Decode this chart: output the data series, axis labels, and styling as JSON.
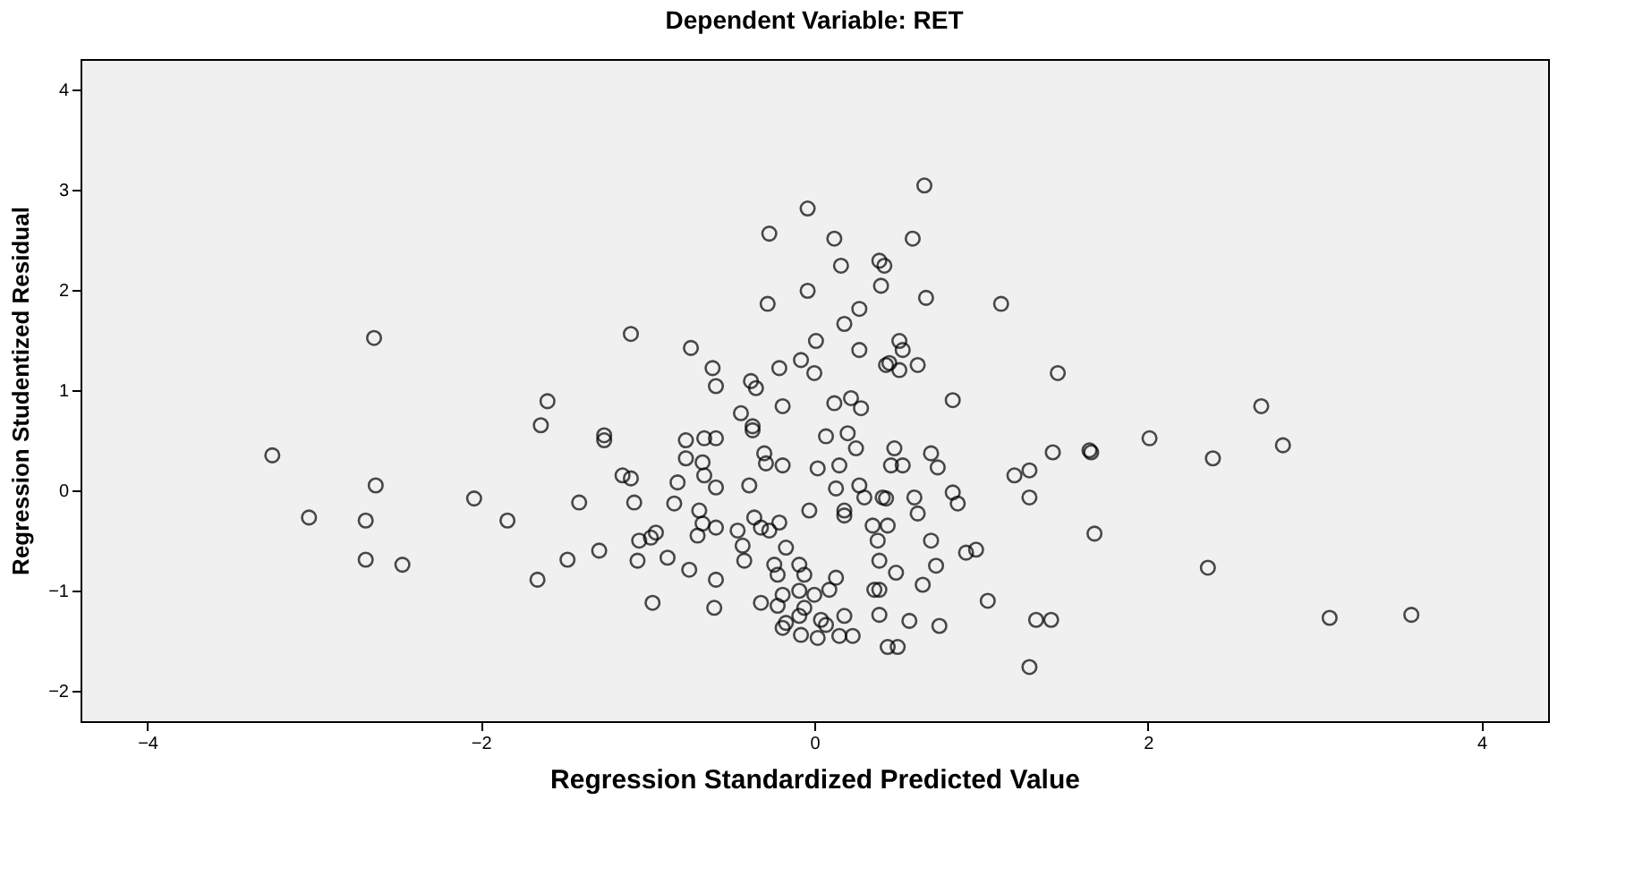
{
  "chart_data": {
    "type": "scatter",
    "title": "Dependent Variable: RET",
    "xlabel": "Regression Standardized Predicted Value",
    "ylabel": "Regression Studentized Residual",
    "xlim": [
      -4.4,
      4.4
    ],
    "ylim": [
      -2.3,
      4.3
    ],
    "xticks": [
      -4,
      -2,
      0,
      2,
      4
    ],
    "yticks": [
      -2,
      -1,
      0,
      1,
      2,
      3,
      4
    ],
    "grid": false,
    "marker": "circle",
    "color": "#000000",
    "x": [
      -3.25,
      -3.03,
      -2.69,
      -2.69,
      -2.63,
      -2.64,
      -2.47,
      -2.04,
      -1.84,
      -1.66,
      -1.64,
      -1.6,
      -1.41,
      -1.48,
      -1.26,
      -1.26,
      -1.15,
      -1.1,
      -1.08,
      -1.1,
      -0.98,
      -0.97,
      -1.29,
      -0.74,
      -0.88,
      -0.04,
      -0.27,
      0.12,
      0.16,
      0.39,
      0.42,
      0.4,
      -0.04,
      -0.28,
      0.27,
      0.18,
      0.01,
      0.27,
      -0.61,
      -0.59,
      -0.38,
      -0.35,
      -0.21,
      -0.08,
      0.0,
      0.12,
      0.22,
      0.28,
      -0.19,
      -0.44,
      -0.37,
      0.43,
      0.66,
      0.59,
      0.67,
      1.12,
      0.51,
      0.53,
      0.45,
      0.51,
      0.62,
      1.46,
      0.83,
      2.68,
      2.01,
      1.66,
      2.39,
      2.81,
      1.68,
      2.36,
      3.09,
      3.58,
      1.43,
      1.65,
      1.2,
      1.29,
      1.29,
      0.91,
      0.97,
      1.04,
      1.33,
      1.42,
      1.29,
      0.7,
      0.74,
      0.48,
      0.53,
      0.46,
      0.83,
      0.86,
      0.6,
      0.62,
      0.43,
      0.44,
      0.7,
      0.73,
      0.49,
      0.65,
      0.39,
      0.39,
      0.39,
      0.57,
      0.75,
      0.44,
      0.5,
      -0.77,
      -0.66,
      -0.59,
      -0.37,
      -0.3,
      -0.29,
      -0.19,
      -0.77,
      -0.67,
      -0.66,
      -0.59,
      -0.82,
      -0.39,
      -0.84,
      0.07,
      0.2,
      0.25,
      0.15,
      0.02,
      0.13,
      0.27,
      0.3,
      0.41,
      -0.03,
      0.18,
      0.18,
      -0.69,
      -0.67,
      -0.7,
      -0.95,
      -1.05,
      -0.59,
      -0.46,
      -0.36,
      -0.32,
      -0.21,
      -0.27,
      -0.17,
      -0.43,
      -0.42,
      -1.06,
      -0.75,
      -0.59,
      -0.6,
      -0.32,
      -0.24,
      -0.22,
      -0.09,
      -0.06,
      0.13,
      0.09,
      -0.19,
      -0.09,
      0.0,
      -0.22,
      -0.06,
      -0.09,
      -0.17,
      -0.19,
      0.04,
      0.18,
      0.07,
      0.15,
      -0.08,
      0.02,
      0.36,
      0.38,
      0.35,
      0.23
    ],
    "values": [
      0.35,
      -0.27,
      -0.3,
      -0.69,
      0.05,
      1.52,
      -0.74,
      -0.08,
      -0.3,
      -0.89,
      0.65,
      0.89,
      -0.12,
      -0.69,
      0.55,
      0.5,
      0.15,
      0.12,
      -0.12,
      1.56,
      -0.47,
      -1.12,
      -0.6,
      1.42,
      -0.67,
      2.81,
      2.56,
      2.51,
      2.24,
      2.29,
      2.24,
      2.04,
      1.99,
      1.86,
      1.81,
      1.66,
      1.49,
      1.4,
      1.22,
      1.04,
      1.09,
      1.02,
      1.22,
      1.3,
      1.17,
      0.87,
      0.92,
      0.82,
      0.84,
      0.77,
      0.64,
      1.25,
      3.04,
      2.51,
      1.92,
      1.86,
      1.49,
      1.4,
      1.27,
      1.2,
      1.25,
      1.17,
      0.9,
      0.84,
      0.52,
      0.38,
      0.32,
      0.45,
      -0.43,
      -0.77,
      -1.27,
      -1.24,
      0.38,
      0.4,
      0.15,
      0.2,
      -0.07,
      -0.62,
      -0.59,
      -1.1,
      -1.29,
      -1.29,
      -1.76,
      0.37,
      0.23,
      0.42,
      0.25,
      0.25,
      -0.02,
      -0.13,
      -0.07,
      -0.23,
      -0.08,
      -0.35,
      -0.5,
      -0.75,
      -0.82,
      -0.94,
      -0.7,
      -0.99,
      -1.24,
      -1.3,
      -1.35,
      -1.56,
      -1.56,
      0.5,
      0.52,
      0.52,
      0.6,
      0.37,
      0.27,
      0.25,
      0.32,
      0.28,
      0.15,
      0.03,
      0.08,
      0.05,
      -0.13,
      0.54,
      0.57,
      0.42,
      0.25,
      0.22,
      0.02,
      0.05,
      -0.07,
      -0.07,
      -0.2,
      -0.2,
      -0.25,
      -0.2,
      -0.33,
      -0.45,
      -0.42,
      -0.5,
      -0.37,
      -0.4,
      -0.27,
      -0.37,
      -0.32,
      -0.4,
      -0.57,
      -0.55,
      -0.7,
      -0.7,
      -0.79,
      -0.89,
      -1.17,
      -1.12,
      -0.74,
      -0.84,
      -0.74,
      -0.84,
      -0.87,
      -0.99,
      -1.04,
      -1.0,
      -1.04,
      -1.15,
      -1.17,
      -1.25,
      -1.32,
      -1.37,
      -1.29,
      -1.25,
      -1.34,
      -1.45,
      -1.44,
      -1.47,
      -0.99,
      -0.5,
      -0.35,
      -1.45
    ]
  }
}
